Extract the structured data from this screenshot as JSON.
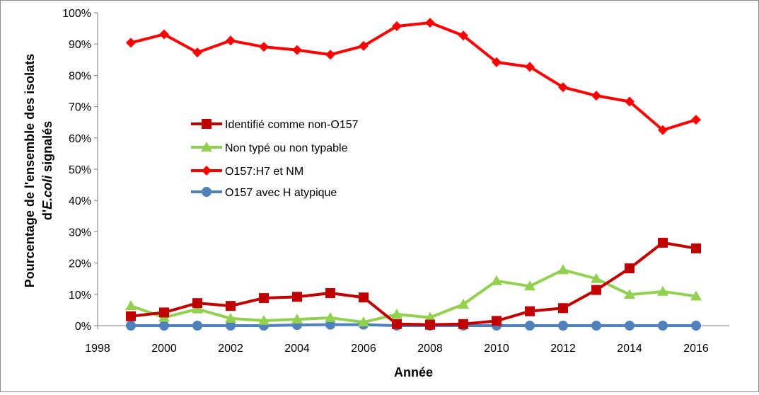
{
  "chart_data": {
    "type": "line",
    "xlabel": "Année",
    "ylabel_line1": "Pourcentage de l'ensemble des isolats",
    "ylabel_line2_prefix": "d'",
    "ylabel_line2_italic": "E.coli",
    "ylabel_line2_suffix": " signalés",
    "xlim": [
      1998,
      2017
    ],
    "ylim": [
      0,
      100
    ],
    "x_ticks": [
      "1998",
      "2000",
      "2002",
      "2004",
      "2006",
      "2008",
      "2010",
      "2012",
      "2014",
      "2016"
    ],
    "x_tick_values": [
      1998,
      2000,
      2002,
      2004,
      2006,
      2008,
      2010,
      2012,
      2014,
      2016
    ],
    "y_ticks": [
      "0%",
      "10%",
      "20%",
      "30%",
      "40%",
      "50%",
      "60%",
      "70%",
      "80%",
      "90%",
      "100%"
    ],
    "y_tick_values": [
      0,
      10,
      20,
      30,
      40,
      50,
      60,
      70,
      80,
      90,
      100
    ],
    "grid": false,
    "legend_position": "center-left",
    "x": [
      1999,
      2000,
      2001,
      2002,
      2003,
      2004,
      2005,
      2006,
      2007,
      2008,
      2009,
      2010,
      2011,
      2012,
      2013,
      2014,
      2015,
      2016
    ],
    "series": [
      {
        "name": "Identifié comme non-O157",
        "color": "#c00000",
        "marker": "square",
        "values": [
          3,
          4.2,
          7.2,
          6.3,
          8.8,
          9.2,
          10.4,
          9.0,
          0.5,
          0.3,
          0.5,
          1.5,
          4.6,
          5.6,
          11.4,
          18.3,
          26.5,
          24.7
        ]
      },
      {
        "name": "Non typé ou non typable",
        "color": "#92d050",
        "marker": "triangle",
        "values": [
          6.3,
          2.6,
          5.3,
          2.3,
          1.6,
          2.0,
          2.5,
          1.1,
          3.6,
          2.6,
          6.8,
          14.3,
          12.6,
          17.8,
          15.0,
          9.9,
          10.9,
          9.4
        ]
      },
      {
        "name": "O157:H7 et NM",
        "color": "#ff0000",
        "marker": "diamond",
        "values": [
          90.4,
          93.1,
          87.3,
          91.1,
          89.1,
          88.1,
          86.6,
          89.4,
          95.7,
          96.8,
          92.7,
          84.2,
          82.7,
          76.2,
          73.5,
          71.6,
          62.5,
          65.8
        ]
      },
      {
        "name": "O157 avec H atypique",
        "color": "#4f81bd",
        "marker": "circle",
        "values": [
          0,
          0,
          0,
          0,
          0,
          0.2,
          0.3,
          0.3,
          0,
          0,
          0,
          0,
          0,
          0,
          0,
          0,
          0,
          0
        ]
      }
    ]
  }
}
